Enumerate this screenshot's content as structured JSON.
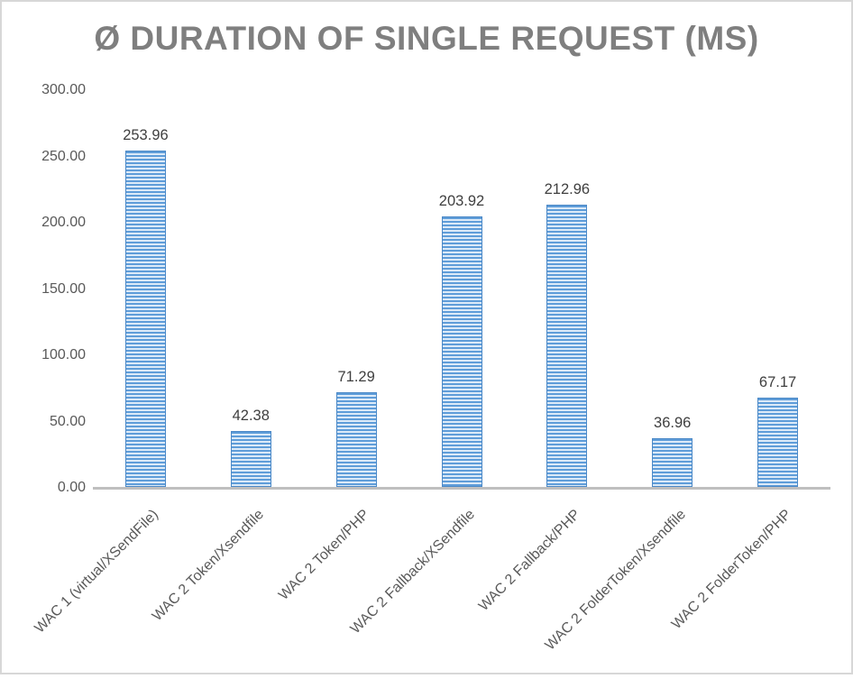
{
  "chart_data": {
    "type": "bar",
    "title": "Ø DURATION OF SINGLE REQUEST (MS)",
    "categories": [
      "WAC 1 (virtual/XSendFile)",
      "WAC 2 Token/Xsendfile",
      "WAC 2 Token/PHP",
      "WAC 2 Fallback/XSendfile",
      "WAC 2 Fallback/PHP",
      "WAC 2 FolderToken/Xsendfile",
      "WAC 2 FolderToken/PHP"
    ],
    "values": [
      253.96,
      42.38,
      71.29,
      203.92,
      212.96,
      36.96,
      67.17
    ],
    "value_labels": [
      "253.96",
      "42.38",
      "71.29",
      "203.92",
      "212.96",
      "36.96",
      "67.17"
    ],
    "xlabel": "",
    "ylabel": "",
    "ylim": [
      0,
      300
    ],
    "yticks": [
      {
        "value": 300,
        "label": "300.00"
      },
      {
        "value": 250,
        "label": "250.00"
      },
      {
        "value": 200,
        "label": "200.00"
      },
      {
        "value": 150,
        "label": "150.00"
      },
      {
        "value": 100,
        "label": "100.00"
      },
      {
        "value": 50,
        "label": "50.00"
      },
      {
        "value": 0,
        "label": "0.00"
      }
    ],
    "grid": false,
    "legend": "none",
    "bar_fill": "horizontal-stripe-pattern",
    "x_label_rotation_deg": 45,
    "colors": {
      "bar_stripe": "#5f9dd9",
      "bar_stripe_light": "#dceaf8",
      "bar_border": "#4c89c7",
      "axis_line": "#bfbfbf",
      "title_text": "#7f7f7f",
      "tick_text": "#595959",
      "value_text": "#3f3f3f",
      "window_border": "#d7d7d7",
      "background": "#ffffff"
    }
  }
}
